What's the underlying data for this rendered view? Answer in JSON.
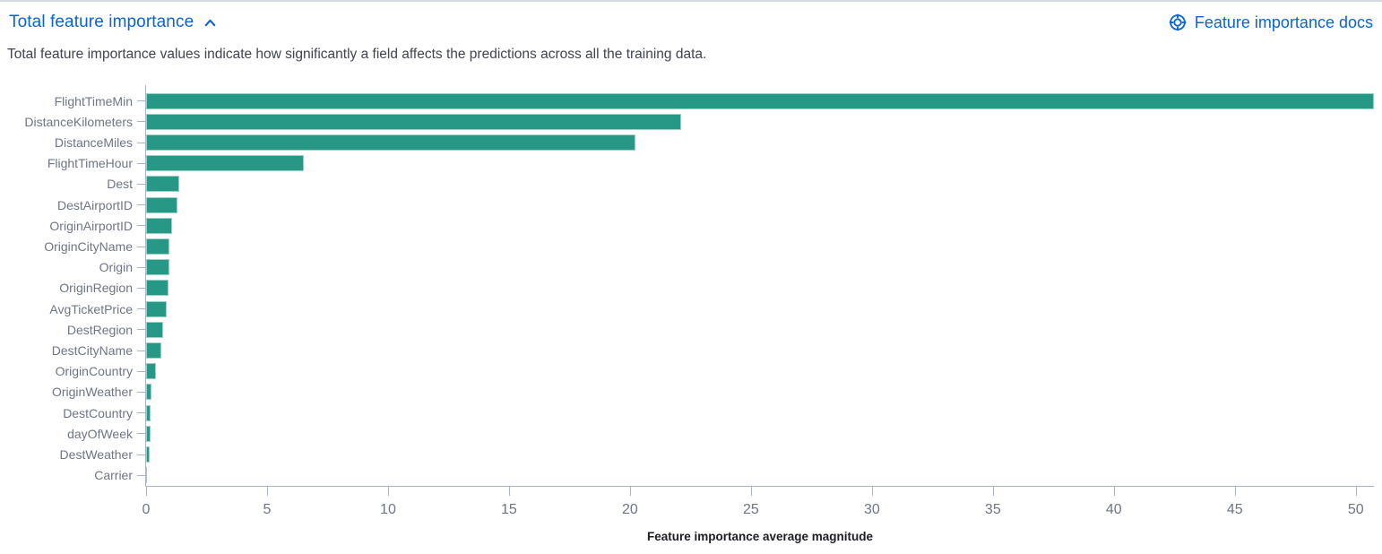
{
  "header": {
    "title": "Total feature importance",
    "collapse_icon": "chevron-up-icon",
    "docs_link_label": "Feature importance docs",
    "docs_icon": "help-lifebuoy-icon",
    "description": "Total feature importance values indicate how significantly a field affects the predictions across all the training data."
  },
  "chart_data": {
    "type": "bar",
    "orientation": "horizontal",
    "title": "Total feature importance",
    "xlabel": "Feature importance average magnitude",
    "ylabel": "",
    "grid": false,
    "legend": false,
    "xlim": [
      0,
      50.75
    ],
    "xticks": [
      0,
      5,
      10,
      15,
      20,
      25,
      30,
      35,
      40,
      45,
      50
    ],
    "categories": [
      "FlightTimeMin",
      "DistanceKilometers",
      "DistanceMiles",
      "FlightTimeHour",
      "Dest",
      "DestAirportID",
      "OriginAirportID",
      "OriginCityName",
      "Origin",
      "OriginRegion",
      "AvgTicketPrice",
      "DestRegion",
      "DestCityName",
      "OriginCountry",
      "OriginWeather",
      "DestCountry",
      "dayOfWeek",
      "DestWeather",
      "Carrier"
    ],
    "values": [
      50.7,
      22.1,
      20.2,
      6.5,
      1.36,
      1.31,
      1.09,
      0.97,
      0.95,
      0.92,
      0.86,
      0.72,
      0.62,
      0.42,
      0.21,
      0.19,
      0.19,
      0.14,
      0.05
    ]
  },
  "colors": {
    "bar": "#279886",
    "link_blue": "#0b64d1",
    "text": "#3f4450",
    "axis_label": "#6e7585",
    "axis_line": "#aab3c5"
  }
}
